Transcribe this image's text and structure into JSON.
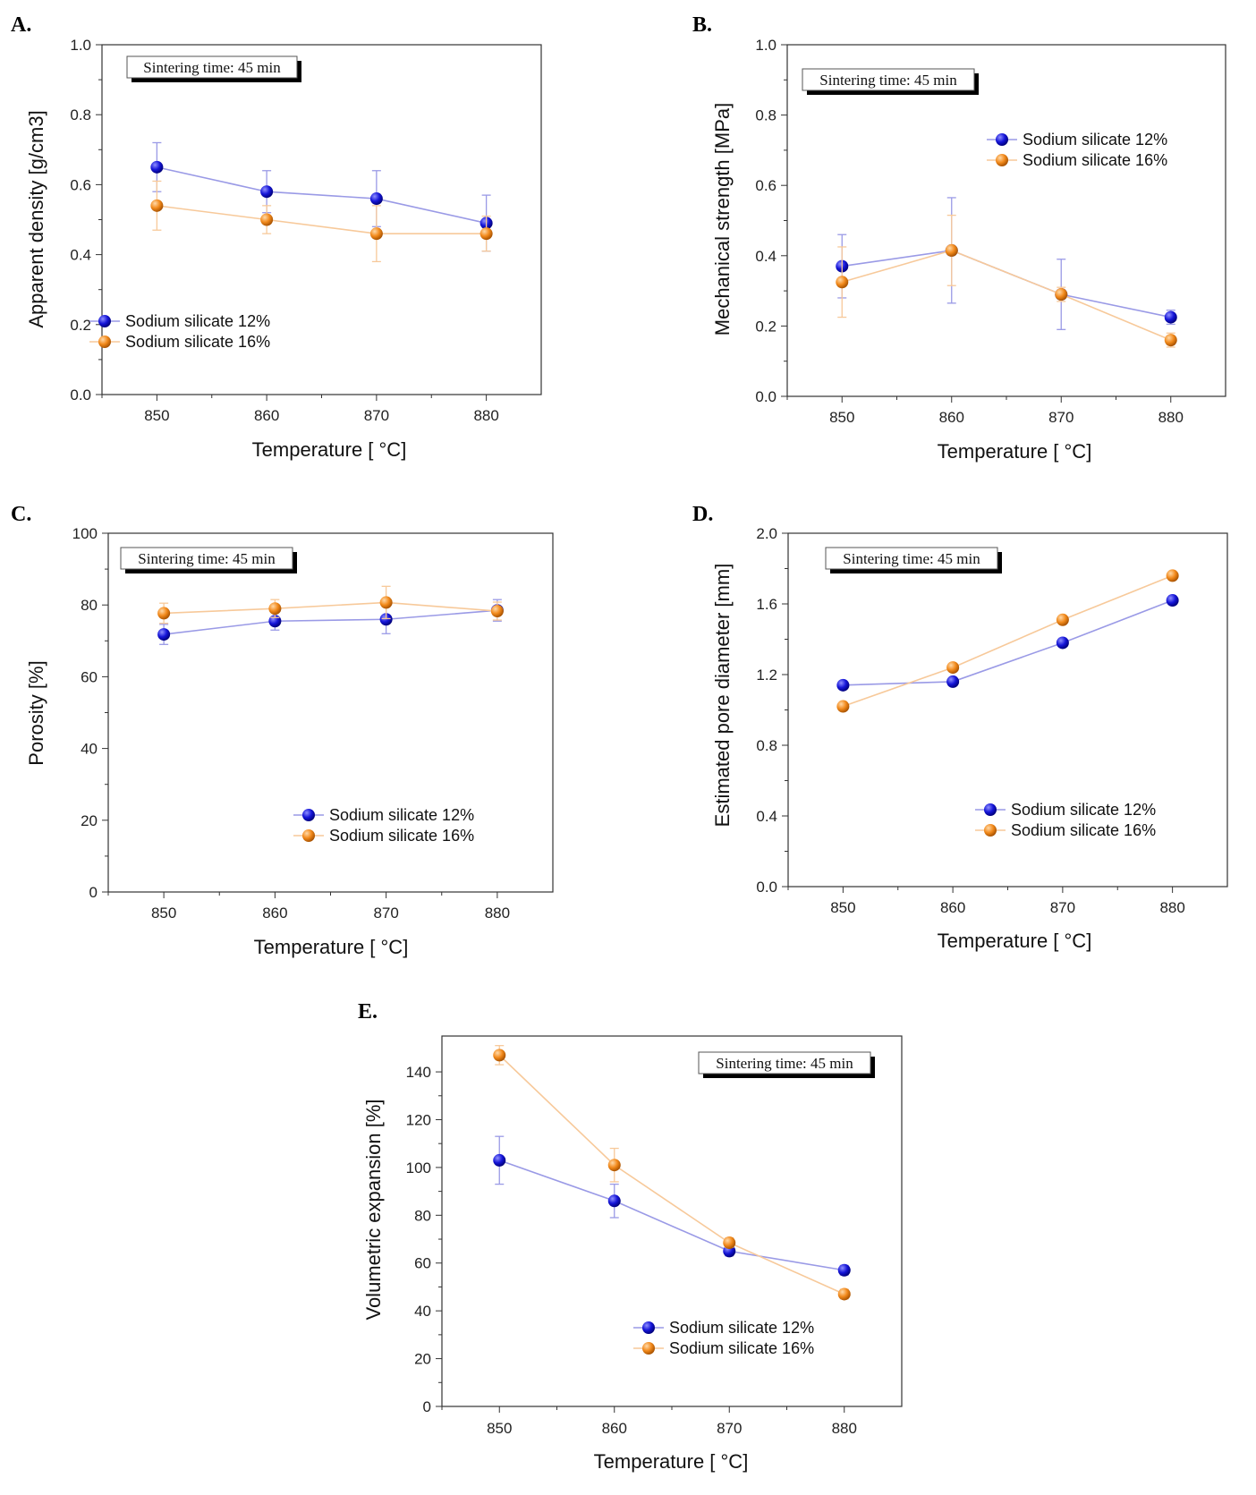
{
  "colors": {
    "s12": "#1515d8",
    "s16": "#f28a1c",
    "s12_line": "#9a9ae6",
    "s16_line": "#f7c99a"
  },
  "chart_data": [
    {
      "type": "line",
      "panel": "A.",
      "annotation": "Sintering time: 45 min",
      "xlabel": "Temperature [ °C]",
      "ylabel": "Apparent density [g/cm3]",
      "x": [
        850,
        860,
        870,
        880
      ],
      "xlim": [
        845,
        885
      ],
      "xticks": [
        "850",
        "860",
        "870",
        "880"
      ],
      "ylim": [
        0,
        1.0
      ],
      "yticks": [
        "0.0",
        "0.2",
        "0.4",
        "0.6",
        "0.8",
        "1.0"
      ],
      "legend_position": "bottom-left",
      "series": [
        {
          "name": "Sodium silicate 12%",
          "values": [
            0.65,
            0.58,
            0.56,
            0.49
          ],
          "errors": [
            0.07,
            0.06,
            0.08,
            0.08
          ]
        },
        {
          "name": "Sodium silicate 16%",
          "values": [
            0.54,
            0.5,
            0.46,
            0.46
          ],
          "errors": [
            0.07,
            0.04,
            0.08,
            0.05
          ]
        }
      ]
    },
    {
      "type": "line",
      "panel": "B.",
      "annotation": "Sintering time: 45 min",
      "xlabel": "Temperature [ °C]",
      "ylabel": "Mechanical strength [MPa]",
      "x": [
        850,
        860,
        870,
        880
      ],
      "xlim": [
        845,
        885
      ],
      "xticks": [
        "850",
        "860",
        "870",
        "880"
      ],
      "ylim": [
        0,
        1.0
      ],
      "yticks": [
        "0.0",
        "0.2",
        "0.4",
        "0.6",
        "0.8",
        "1.0"
      ],
      "legend_position": "top-right",
      "series": [
        {
          "name": "Sodium silicate 12%",
          "values": [
            0.37,
            0.415,
            0.29,
            0.225
          ],
          "errors": [
            0.09,
            0.15,
            0.1,
            0.02
          ]
        },
        {
          "name": "Sodium silicate 16%",
          "values": [
            0.325,
            0.415,
            0.29,
            0.16
          ],
          "errors": [
            0.1,
            0.1,
            0.02,
            0.02
          ]
        }
      ]
    },
    {
      "type": "line",
      "panel": "C.",
      "annotation": "Sintering time: 45 min",
      "xlabel": "Temperature [ °C]",
      "ylabel": "Porosity [%]",
      "x": [
        850,
        860,
        870,
        880
      ],
      "xlim": [
        845,
        885
      ],
      "xticks": [
        "850",
        "860",
        "870",
        "880"
      ],
      "ylim": [
        0,
        100
      ],
      "yticks": [
        "0",
        "20",
        "40",
        "60",
        "80",
        "100"
      ],
      "legend_position": "bottom-right",
      "series": [
        {
          "name": "Sodium silicate 12%",
          "values": [
            71.8,
            75.5,
            76.0,
            78.5
          ],
          "errors": [
            2.8,
            2.5,
            4.0,
            3.0
          ]
        },
        {
          "name": "Sodium silicate 16%",
          "values": [
            77.7,
            79.0,
            80.7,
            78.3
          ],
          "errors": [
            2.8,
            2.5,
            4.5,
            2.5
          ]
        }
      ]
    },
    {
      "type": "line",
      "panel": "D.",
      "annotation": "Sintering time: 45 min",
      "xlabel": "Temperature [ °C]",
      "ylabel": "Estimated pore diameter [mm]",
      "x": [
        850,
        860,
        870,
        880
      ],
      "xlim": [
        845,
        885
      ],
      "xticks": [
        "850",
        "860",
        "870",
        "880"
      ],
      "ylim": [
        0,
        2.0
      ],
      "yticks": [
        "0.0",
        "0.4",
        "0.8",
        "1.2",
        "1.6",
        "2.0"
      ],
      "legend_position": "bottom-right",
      "series": [
        {
          "name": "Sodium silicate 12%",
          "values": [
            1.14,
            1.16,
            1.38,
            1.62
          ],
          "errors": [
            0.01,
            0.01,
            0.01,
            0.01
          ]
        },
        {
          "name": "Sodium silicate 16%",
          "values": [
            1.02,
            1.24,
            1.51,
            1.76
          ],
          "errors": [
            0.01,
            0.01,
            0.01,
            0.01
          ]
        }
      ]
    },
    {
      "type": "line",
      "panel": "E.",
      "annotation": "Sintering time: 45 min",
      "xlabel": "Temperature [ °C]",
      "ylabel": "Volumetric expansion [%]",
      "x": [
        850,
        860,
        870,
        880
      ],
      "xlim": [
        845,
        885
      ],
      "xticks": [
        "850",
        "860",
        "870",
        "880"
      ],
      "ylim": [
        0,
        155
      ],
      "yticks": [
        "0",
        "20",
        "40",
        "60",
        "80",
        "100",
        "120",
        "140"
      ],
      "legend_position": "bottom-right",
      "series": [
        {
          "name": "Sodium silicate 12%",
          "values": [
            103,
            86,
            65,
            57
          ],
          "errors": [
            10,
            7,
            2,
            2
          ]
        },
        {
          "name": "Sodium silicate 16%",
          "values": [
            147,
            101,
            68.5,
            47
          ],
          "errors": [
            4,
            7,
            2,
            2
          ]
        }
      ]
    }
  ]
}
